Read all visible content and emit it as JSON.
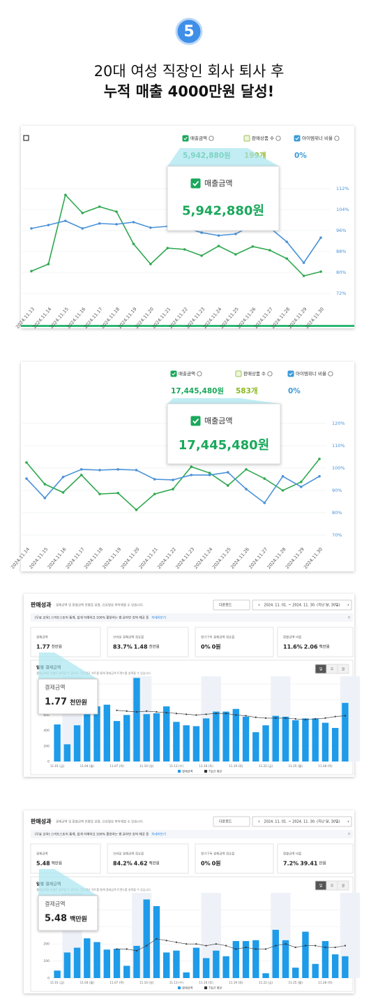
{
  "badge": "5",
  "headline": [
    "20대 여성 직장인 회사 퇴사 후",
    "누적 매출 4000만원 달성!"
  ],
  "line_panels": [
    {
      "legend": [
        {
          "name": "매출금액",
          "value": "5,942,880원",
          "color": "#1aa85b",
          "checked": true
        },
        {
          "name": "판매상품 수",
          "value": "199개",
          "color": "#8ab820",
          "checked": false
        },
        {
          "name": "아이템위너 비율",
          "value": "0%",
          "color": "#3b9bd8",
          "checked": true
        }
      ],
      "tooltip": {
        "name": "매출금액",
        "value": "5,942,880원"
      },
      "chart_data": {
        "type": "line",
        "x": [
          "2024.11.13",
          "2024.11.14",
          "2024.11.15",
          "2024.11.16",
          "2024.11.17",
          "2024.11.18",
          "2024.11.19",
          "2024.11.20",
          "2024.11.21",
          "2024.11.22",
          "2024.11.23",
          "2024.11.24",
          "2024.11.25",
          "2024.11.26",
          "2024.11.27",
          "2024.11.28",
          "2024.11.29",
          "2024.11.30"
        ],
        "ylim": [
          68,
          114
        ],
        "yticks": [
          {
            "value": 72,
            "label": "72%"
          },
          {
            "value": 80,
            "label": "80%"
          },
          {
            "value": 88,
            "label": "88%"
          },
          {
            "value": 96,
            "label": "96%"
          },
          {
            "value": 104,
            "label": "104%"
          },
          {
            "value": 112,
            "label": "112%"
          }
        ],
        "series": [
          {
            "color": "#2fa84f",
            "values": [
              80.5,
              83.2,
              109.6,
              102.7,
              105.1,
              103.2,
              90.9,
              83.2,
              89.3,
              88.8,
              86.4,
              90.1,
              86.9,
              89.9,
              88.5,
              85.3,
              78.7,
              80.3
            ]
          },
          {
            "color": "#4a92d8",
            "values": [
              96.8,
              98.1,
              99.7,
              96.8,
              98.7,
              98.4,
              99.2,
              97.1,
              97.6,
              97.1,
              95.2,
              94.1,
              94.7,
              98.1,
              97.1,
              91.7,
              83.7,
              93.3
            ]
          }
        ]
      }
    },
    {
      "legend": [
        {
          "name": "매출금액",
          "value": "17,445,480원",
          "color": "#1aa85b",
          "checked": true
        },
        {
          "name": "판매상품 수",
          "value": "583개",
          "color": "#8ab820",
          "checked": false
        },
        {
          "name": "아이템위너 비율",
          "value": "0%",
          "color": "#3b9bd8",
          "checked": true
        }
      ],
      "tooltip": {
        "name": "매출금액",
        "value": "17,445,480원"
      },
      "chart_data": {
        "type": "line",
        "x": [
          "2024.11.14",
          "2024.11.15",
          "2024.11.16",
          "2024.11.17",
          "2024.11.18",
          "2024.11.19",
          "2024.11.20",
          "2024.11.21",
          "2024.11.22",
          "2024.11.23",
          "2024.11.24",
          "2024.11.25",
          "2024.11.26",
          "2024.11.27",
          "2024.11.28",
          "2024.11.29",
          "2024.11.30"
        ],
        "ylim": [
          66,
          124
        ],
        "yticks": [
          {
            "value": 70,
            "label": "70%"
          },
          {
            "value": 80,
            "label": "80%"
          },
          {
            "value": 90,
            "label": "90%"
          },
          {
            "value": 100,
            "label": "100%"
          },
          {
            "value": 110,
            "label": "110%"
          },
          {
            "value": 120,
            "label": "120%"
          }
        ],
        "series": [
          {
            "color": "#2fa84f",
            "values": [
              102.5,
              92.8,
              89.1,
              96.9,
              88.4,
              88.8,
              81.3,
              88.4,
              90.6,
              100.6,
              97.8,
              92.2,
              99.4,
              95.3,
              90,
              93.8,
              104.1
            ]
          },
          {
            "color": "#4a92d8",
            "values": [
              95.3,
              86.6,
              96,
              99.4,
              99.1,
              99.4,
              99.1,
              95,
              94.7,
              96.9,
              96.9,
              98.1,
              90.6,
              84.4,
              96.3,
              91.6,
              96.3
            ]
          }
        ]
      }
    }
  ],
  "bar_panels": [
    {
      "section_title": "판매성과",
      "section_desc": "결제금액 및 환불금액 현황을 일별, 요일별로 파악해볼 수 있습니다.",
      "download": "다운로드",
      "date_range": "2024. 11. 01. ~ 2024. 11. 30. (지난 달, 30일)",
      "banner": "[무료 교육] 스마트스토어 통계, 쉽게 이해하고 100% 활용하는 법 온라인 강의 제공 중",
      "banner_link": "자세히보기",
      "cards": [
        {
          "label": "결제금액",
          "items": [
            "1.77",
            "천만원"
          ]
        },
        {
          "label": "모바일 결제금액 점유율",
          "items": [
            "83.7%",
            "1.48",
            "천만원"
          ]
        },
        {
          "label": "정기구독 결제금액 점유율",
          "items": [
            "0%",
            "0원"
          ]
        },
        {
          "label": "환불금액 비율",
          "items": [
            "11.6%",
            "2.06",
            "백만원"
          ]
        }
      ],
      "chart_title": "일별 결제금액",
      "chart_desc": "결제금액을 일별로 살펴볼 수 있어요. 7일 평균 차트를 통해 결제금액 트렌드를 살펴볼 수 있습니다.",
      "toggles": [
        "일",
        "주",
        "월"
      ],
      "callout": {
        "label": "결제금액",
        "value": "1.77",
        "unit": "천만원"
      },
      "chart_data": {
        "type": "bar",
        "categories": [
          "11.01 (금)",
          null,
          null,
          "11.04 (월)",
          null,
          null,
          "11.07 (목)",
          null,
          null,
          "11.10 (일)",
          null,
          null,
          "11.13 (수)",
          null,
          null,
          "11.16 (토)",
          null,
          null,
          "11.19 (화)",
          null,
          null,
          "11.22 (금)",
          null,
          null,
          "11.25 (월)",
          null,
          null,
          "11.28 (목)",
          null,
          null
        ],
        "ylim": [
          0,
          1100
        ],
        "yticks": [
          0,
          200,
          400,
          600,
          800,
          1000
        ],
        "series": [
          {
            "name": "결제금액",
            "color": "#1e9be9",
            "values": [
              478,
              222,
              467,
              811,
              711,
              733,
              522,
              600,
              1078,
              611,
              622,
              711,
              511,
              467,
              456,
              556,
              644,
              644,
              678,
              578,
              378,
              467,
              589,
              578,
              533,
              556,
              556,
              500,
              433,
              756
            ]
          },
          {
            "name": "7일간 평균",
            "color": "#333333",
            "values": [
              null,
              null,
              null,
              null,
              null,
              null,
              660,
              650,
              640,
              650,
              640,
              630,
              620,
              610,
              600,
              610,
              620,
              620,
              600,
              590,
              570,
              560,
              560,
              560,
              550,
              540,
              550,
              560,
              580,
              590
            ]
          }
        ]
      }
    },
    {
      "section_title": "판매성과",
      "section_desc": "결제금액 및 환불금액 현황을 일별, 요일별로 파악해볼 수 있습니다.",
      "download": "다운로드",
      "date_range": "2024. 11. 01. ~ 2024. 11. 30. (지난 달, 30일)",
      "banner": "[무료 교육] 스마트스토어 통계, 쉽게 이해하고 100% 활용하는 법 온라인 강의 제공 중",
      "banner_link": "자세히보기",
      "cards": [
        {
          "label": "결제금액",
          "items": [
            "5.48",
            "백만원"
          ]
        },
        {
          "label": "모바일 결제금액 점유율",
          "items": [
            "84.2%",
            "4.62",
            "백만원"
          ]
        },
        {
          "label": "정기구독 결제금액 점유율",
          "items": [
            "0%",
            "0원"
          ]
        },
        {
          "label": "환불금액 비율",
          "items": [
            "7.2%",
            "39.41",
            "만원"
          ]
        }
      ],
      "chart_title": "일별 결제금액",
      "chart_desc": "결제금액을 일별로 살펴볼 수 있어요. 7일 평균 차트를 통해 결제금액 트렌드를 살펴볼 수 있습니다.",
      "toggles": [
        "일",
        "주",
        "월"
      ],
      "callout": {
        "label": "결제금액",
        "value": "5.48",
        "unit": "백만원"
      },
      "chart_data": {
        "type": "bar",
        "categories": [
          "11.01 (금)",
          null,
          null,
          "11.04 (월)",
          null,
          null,
          "11.07 (목)",
          null,
          null,
          "11.10 (일)",
          null,
          null,
          "11.13 (수)",
          null,
          null,
          "11.16 (토)",
          null,
          null,
          "11.19 (화)",
          null,
          null,
          "11.22 (금)",
          null,
          null,
          "11.25 (월)",
          null,
          null,
          "11.28 (목)",
          null,
          null
        ],
        "ylim": [
          0,
          500
        ],
        "yticks": [
          0,
          100,
          200,
          300,
          400
        ],
        "series": [
          {
            "name": "결제금액",
            "color": "#1e9be9",
            "values": [
              44,
              150,
              178,
              233,
              211,
              167,
              172,
              72,
              189,
              461,
              422,
              150,
              161,
              33,
              178,
              117,
              161,
              128,
              217,
              217,
              222,
              28,
              283,
              222,
              61,
              272,
              83,
              217,
              139,
              128
            ]
          },
          {
            "name": "7일간 평균",
            "color": "#333333",
            "values": [
              null,
              null,
              null,
              null,
              null,
              null,
              170,
              170,
              160,
              190,
              230,
              220,
              210,
              200,
              200,
              190,
              200,
              190,
              170,
              180,
              170,
              170,
              190,
              200,
              180,
              190,
              190,
              180,
              180,
              190
            ]
          }
        ]
      }
    }
  ]
}
